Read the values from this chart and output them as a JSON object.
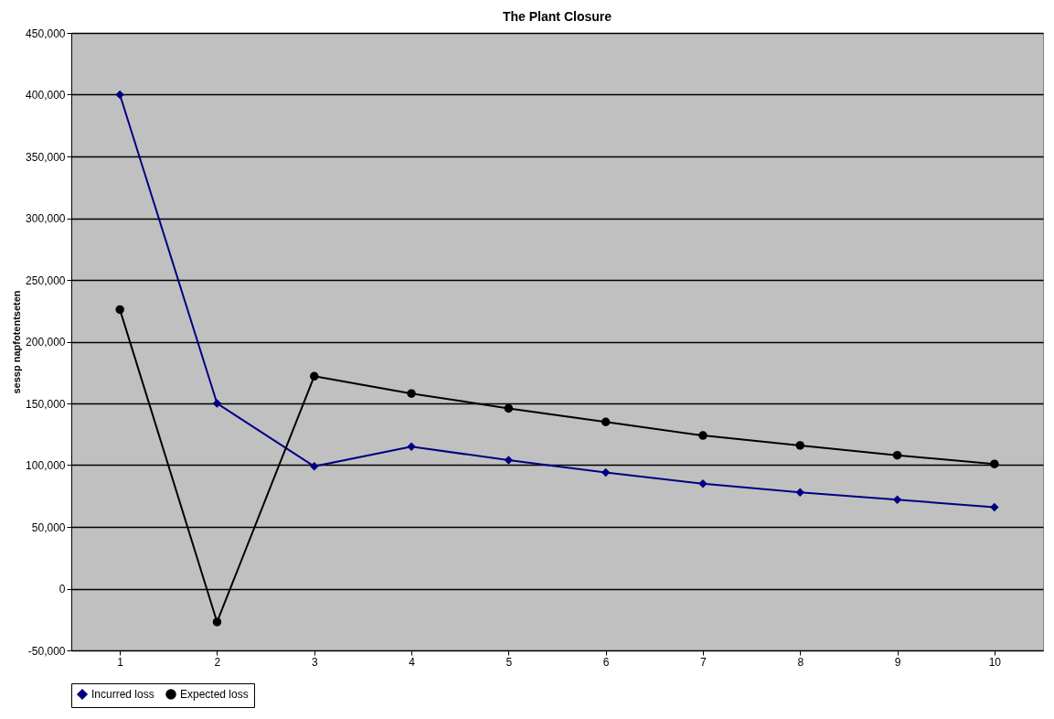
{
  "chart_data": {
    "type": "line",
    "title": "The Plant Closure",
    "ylabel": "sessp napfotentseten",
    "categories": [
      "1",
      "2",
      "3",
      "4",
      "5",
      "6",
      "7",
      "8",
      "9",
      "10"
    ],
    "series": [
      {
        "name": "Incurred loss",
        "color": "#000080",
        "marker": "diamond",
        "values": [
          400000,
          150000,
          99000,
          115000,
          104000,
          94000,
          85000,
          78000,
          72000,
          66000
        ]
      },
      {
        "name": "Expected loss",
        "color": "#000000",
        "marker": "circle",
        "values": [
          226000,
          -27000,
          172000,
          158000,
          146000,
          135000,
          124000,
          116000,
          108000,
          101000
        ]
      }
    ],
    "ylim": [
      -50000,
      450000
    ],
    "yticks": [
      {
        "value": -50000,
        "label": "-50,000"
      },
      0,
      {
        "value": 50000,
        "label": "50,000"
      },
      {
        "value": 100000,
        "label": "100,000"
      },
      {
        "value": 150000,
        "label": "150,000"
      },
      {
        "value": 200000,
        "label": "200,000"
      },
      {
        "value": 250000,
        "label": "250,000"
      },
      {
        "value": 300000,
        "label": "300,000"
      },
      {
        "value": 350000,
        "label": "350,000"
      },
      {
        "value": 400000,
        "label": "400,000"
      },
      {
        "value": 450000,
        "label": "450,000"
      }
    ],
    "grid": "y",
    "legend": "bottom",
    "line_style": "solid"
  }
}
